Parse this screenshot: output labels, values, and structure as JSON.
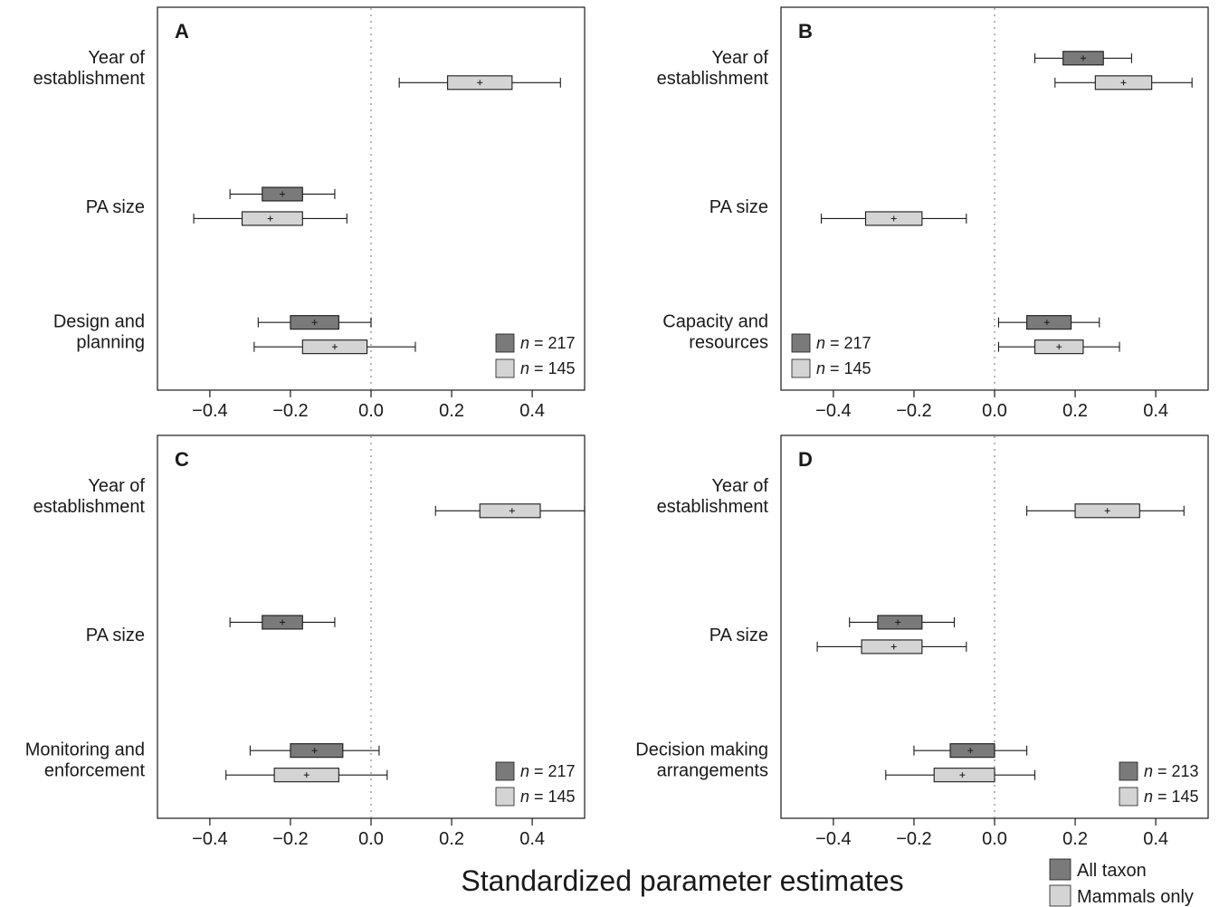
{
  "colors": {
    "all_taxon": "#7a7a7a",
    "mammals_only": "#d4d4d4"
  },
  "xlabel": "Standardized parameter estimates",
  "key": [
    {
      "label": "All taxon",
      "series": "all_taxon"
    },
    {
      "label": "Mammals only",
      "series": "mammals_only"
    }
  ],
  "chart_data": [
    {
      "panel": "A",
      "type": "box",
      "xlim": [
        -0.53,
        0.53
      ],
      "xticks": [
        "−0.4",
        "−0.2",
        "0.0",
        "0.2",
        "0.4"
      ],
      "xtick_values": [
        -0.4,
        -0.2,
        0.0,
        0.2,
        0.4
      ],
      "categories": [
        [
          "Year of",
          "establishment"
        ],
        [
          "PA size"
        ],
        [
          "Design and",
          "planning"
        ]
      ],
      "legend": [
        {
          "series": "all_taxon",
          "n_text": "n",
          "text": " = 217"
        },
        {
          "series": "mammals_only",
          "n_text": "n",
          "text": " = 145"
        }
      ],
      "legend_position": "bottom-right",
      "series": [
        {
          "key": "all_taxon",
          "boxes": [
            null,
            {
              "whisker_low": -0.35,
              "q1": -0.27,
              "median": -0.22,
              "q3": -0.17,
              "whisker_high": -0.09
            },
            {
              "whisker_low": -0.28,
              "q1": -0.2,
              "median": -0.14,
              "q3": -0.08,
              "whisker_high": 0.0
            }
          ]
        },
        {
          "key": "mammals_only",
          "boxes": [
            {
              "whisker_low": 0.07,
              "q1": 0.19,
              "median": 0.27,
              "q3": 0.35,
              "whisker_high": 0.47
            },
            {
              "whisker_low": -0.44,
              "q1": -0.32,
              "median": -0.25,
              "q3": -0.17,
              "whisker_high": -0.06
            },
            {
              "whisker_low": -0.29,
              "q1": -0.17,
              "median": -0.09,
              "q3": -0.01,
              "whisker_high": 0.11
            }
          ]
        }
      ]
    },
    {
      "panel": "B",
      "type": "box",
      "xlim": [
        -0.53,
        0.53
      ],
      "xticks": [
        "−0.4",
        "−0.2",
        "0.0",
        "0.2",
        "0.4"
      ],
      "xtick_values": [
        -0.4,
        -0.2,
        0.0,
        0.2,
        0.4
      ],
      "categories": [
        [
          "Year of",
          "establishment"
        ],
        [
          "PA size"
        ],
        [
          "Capacity and",
          "resources"
        ]
      ],
      "legend": [
        {
          "series": "all_taxon",
          "n_text": "n",
          "text": " = 217"
        },
        {
          "series": "mammals_only",
          "n_text": "n",
          "text": " = 145"
        }
      ],
      "legend_position": "bottom-left",
      "series": [
        {
          "key": "all_taxon",
          "boxes": [
            {
              "whisker_low": 0.1,
              "q1": 0.17,
              "median": 0.22,
              "q3": 0.27,
              "whisker_high": 0.34
            },
            null,
            {
              "whisker_low": 0.01,
              "q1": 0.08,
              "median": 0.13,
              "q3": 0.19,
              "whisker_high": 0.26
            }
          ]
        },
        {
          "key": "mammals_only",
          "boxes": [
            {
              "whisker_low": 0.15,
              "q1": 0.25,
              "median": 0.32,
              "q3": 0.39,
              "whisker_high": 0.49
            },
            {
              "whisker_low": -0.43,
              "q1": -0.32,
              "median": -0.25,
              "q3": -0.18,
              "whisker_high": -0.07
            },
            {
              "whisker_low": 0.01,
              "q1": 0.1,
              "median": 0.16,
              "q3": 0.22,
              "whisker_high": 0.31
            }
          ]
        }
      ]
    },
    {
      "panel": "C",
      "type": "box",
      "xlim": [
        -0.53,
        0.53
      ],
      "xticks": [
        "−0.4",
        "−0.2",
        "0.0",
        "0.2",
        "0.4"
      ],
      "xtick_values": [
        -0.4,
        -0.2,
        0.0,
        0.2,
        0.4
      ],
      "categories": [
        [
          "Year of",
          "establishment"
        ],
        [
          "PA size"
        ],
        [
          "Monitoring and",
          "enforcement"
        ]
      ],
      "legend": [
        {
          "series": "all_taxon",
          "n_text": "n",
          "text": " = 217"
        },
        {
          "series": "mammals_only",
          "n_text": "n",
          "text": " = 145"
        }
      ],
      "legend_position": "bottom-right",
      "series": [
        {
          "key": "all_taxon",
          "boxes": [
            null,
            {
              "whisker_low": -0.35,
              "q1": -0.27,
              "median": -0.22,
              "q3": -0.17,
              "whisker_high": -0.09
            },
            {
              "whisker_low": -0.3,
              "q1": -0.2,
              "median": -0.14,
              "q3": -0.07,
              "whisker_high": 0.02
            }
          ]
        },
        {
          "key": "mammals_only",
          "boxes": [
            {
              "whisker_low": 0.16,
              "q1": 0.27,
              "median": 0.35,
              "q3": 0.42,
              "whisker_high": 0.53
            },
            null,
            {
              "whisker_low": -0.36,
              "q1": -0.24,
              "median": -0.16,
              "q3": -0.08,
              "whisker_high": 0.04
            }
          ]
        }
      ]
    },
    {
      "panel": "D",
      "type": "box",
      "xlim": [
        -0.53,
        0.53
      ],
      "xticks": [
        "−0.4",
        "−0.2",
        "0.0",
        "0.2",
        "0.4"
      ],
      "xtick_values": [
        -0.4,
        -0.2,
        0.0,
        0.2,
        0.4
      ],
      "categories": [
        [
          "Year of",
          "establishment"
        ],
        [
          "PA size"
        ],
        [
          "Decision making",
          "arrangements"
        ]
      ],
      "legend": [
        {
          "series": "all_taxon",
          "n_text": "n",
          "text": " = 213"
        },
        {
          "series": "mammals_only",
          "n_text": "n",
          "text": " = 145"
        }
      ],
      "legend_position": "bottom-right",
      "series": [
        {
          "key": "all_taxon",
          "boxes": [
            null,
            {
              "whisker_low": -0.36,
              "q1": -0.29,
              "median": -0.24,
              "q3": -0.18,
              "whisker_high": -0.1
            },
            {
              "whisker_low": -0.2,
              "q1": -0.11,
              "median": -0.06,
              "q3": 0.0,
              "whisker_high": 0.08
            }
          ]
        },
        {
          "key": "mammals_only",
          "boxes": [
            {
              "whisker_low": 0.08,
              "q1": 0.2,
              "median": 0.28,
              "q3": 0.36,
              "whisker_high": 0.47
            },
            {
              "whisker_low": -0.44,
              "q1": -0.33,
              "median": -0.25,
              "q3": -0.18,
              "whisker_high": -0.07
            },
            {
              "whisker_low": -0.27,
              "q1": -0.15,
              "median": -0.08,
              "q3": 0.0,
              "whisker_high": 0.1
            }
          ]
        }
      ]
    }
  ]
}
